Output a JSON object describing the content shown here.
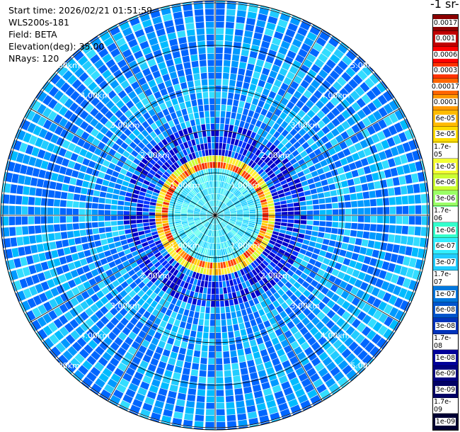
{
  "info": {
    "start_time": "Start time: 2026/02/21 01:51:59",
    "instrument": "WLS200s-181",
    "field": "Field: BETA",
    "elevation": "Elevation(deg): 35.00",
    "nrays": "NRays: 120"
  },
  "units_label": "-1 sr-",
  "ring_labels": [
    "1.00km",
    "2.00km",
    "3.00km",
    "4.00km",
    "5.00km"
  ],
  "colorbar": {
    "labels": [
      "0.0017",
      "0.001",
      "0.0006",
      "0.0003",
      "0.00017",
      "0.0001",
      "6e-05",
      "3e-05",
      "1.7e-05",
      "1e-05",
      "6e-06",
      "3e-06",
      "1.7e-06",
      "1e-06",
      "6e-07",
      "3e-07",
      "1.7e-07",
      "1e-07",
      "6e-08",
      "3e-08",
      "1.7e-08",
      "1e-08",
      "6e-09",
      "3e-09",
      "1.7e-09",
      "1e-09"
    ],
    "colors": [
      "#8b0000",
      "#c00000",
      "#ff0000",
      "#ff3300",
      "#ff6600",
      "#ff9900",
      "#ffbb00",
      "#ffdd00",
      "#ffee33",
      "#f2ff33",
      "#ccff33",
      "#99ff66",
      "#66ff99",
      "#33ffcc",
      "#33eeff",
      "#22ccff",
      "#1199ee",
      "#0077dd",
      "#0055cc",
      "#0033bb",
      "#0011aa",
      "#000099",
      "#000080",
      "#000066",
      "#00004d",
      "#000033"
    ]
  }
}
